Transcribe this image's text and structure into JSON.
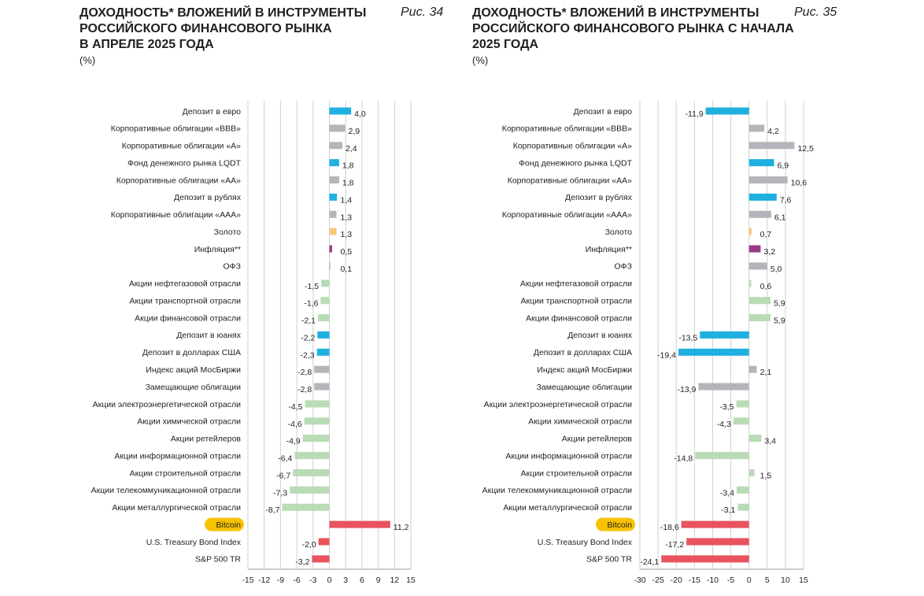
{
  "colors": {
    "blue": "#1fb0e0",
    "gray": "#b4b4bb",
    "lightgreen": "#b9dbb5",
    "red": "#e8535d",
    "gold": "#f6c977",
    "purple": "#9b3a86",
    "highlight": "#f7c300",
    "grid": "#cfcfcf"
  },
  "chart_data": [
    {
      "type": "bar",
      "orientation": "horizontal",
      "title_lines": [
        "ДОХОДНОСТЬ* ВЛОЖЕНИЙ В ИНСТРУМЕНТЫ",
        "РОССИЙСКОГО ФИНАНСОВОГО РЫНКА",
        "В АПРЕЛЕ 2025 ГОДА"
      ],
      "figure_label": "Рис. 34",
      "unit": "(%)",
      "xlim": [
        -15,
        15
      ],
      "xticks": [
        -15,
        -12,
        -9,
        -6,
        -3,
        0,
        3,
        6,
        9,
        12,
        15
      ],
      "grid": true,
      "categories": [
        "Депозит в евро",
        "Корпоративные облигации «ВВВ»",
        "Корпоративные облигации «А»",
        "Фонд денежного рынка LQDT",
        "Корпоративные облигации «АА»",
        "Депозит в рублях",
        "Корпоративные облигации «ААА»",
        "Золото",
        "Инфляция**",
        "ОФЗ",
        "Акции нефтегазовой отрасли",
        "Акции транспортной отрасли",
        "Акции финансовой отрасли",
        "Депозит в юанях",
        "Депозит в долларах США",
        "Индекс акций МосБиржи",
        "Замещающие облигации",
        "Акции электроэнергетической отрасли",
        "Акции химической отрасли",
        "Акции ретейлеров",
        "Акции информационной отрасли",
        "Акции строительной отрасли",
        "Акции телекоммуникационной отрасли",
        "Акции металлургической отрасли",
        "Bitcoin",
        "U.S. Treasury Bond Index",
        "S&P 500 TR"
      ],
      "values": [
        4.0,
        2.9,
        2.4,
        1.8,
        1.8,
        1.4,
        1.3,
        1.3,
        0.5,
        0.1,
        -1.5,
        -1.6,
        -2.1,
        -2.2,
        -2.3,
        -2.8,
        -2.8,
        -4.5,
        -4.6,
        -4.9,
        -6.4,
        -6.7,
        -7.3,
        -8.7,
        11.2,
        -2.0,
        -3.2
      ],
      "labels": [
        "4,0",
        "2,9",
        "2,4",
        "1,8",
        "1,8",
        "1,4",
        "1,3",
        "1,3",
        "0,5",
        "0,1",
        "-1,5",
        "-1,6",
        "-2,1",
        "-2,2",
        "-2,3",
        "-2,8",
        "-2,8",
        "-4,5",
        "-4,6",
        "-4,9",
        "-6,4",
        "-6,7",
        "-7,3",
        "-8,7",
        "11,2",
        "-2,0",
        "-3,2"
      ],
      "colors": [
        "blue",
        "gray",
        "gray",
        "blue",
        "gray",
        "blue",
        "gray",
        "gold",
        "purple",
        "gray",
        "lightgreen",
        "lightgreen",
        "lightgreen",
        "blue",
        "blue",
        "gray",
        "gray",
        "lightgreen",
        "lightgreen",
        "lightgreen",
        "lightgreen",
        "lightgreen",
        "lightgreen",
        "lightgreen",
        "red",
        "red",
        "red"
      ]
    },
    {
      "type": "bar",
      "orientation": "horizontal",
      "title_lines": [
        "ДОХОДНОСТЬ* ВЛОЖЕНИЙ В ИНСТРУМЕНТЫ",
        "РОССИЙСКОГО ФИНАНСОВОГО РЫНКА С НАЧАЛА",
        "2025 ГОДА"
      ],
      "figure_label": "Рис. 35",
      "unit": "(%)",
      "xlim": [
        -30,
        15
      ],
      "xticks": [
        -30,
        -25,
        -20,
        -15,
        -10,
        -5,
        0,
        5,
        10,
        15
      ],
      "grid": true,
      "categories": [
        "Депозит в евро",
        "Корпоративные облигации «ВВВ»",
        "Корпоративные облигации «А»",
        "Фонд денежного рынка LQDT",
        "Корпоративные облигации «АА»",
        "Депозит в рублях",
        "Корпоративные облигации «ААА»",
        "Золото",
        "Инфляция**",
        "ОФЗ",
        "Акции нефтегазовой отрасли",
        "Акции транспортной отрасли",
        "Акции финансовой отрасли",
        "Депозит в юанях",
        "Депозит в долларах США",
        "Индекс акций МосБиржи",
        "Замещающие облигации",
        "Акции электроэнергетической отрасли",
        "Акции химической отрасли",
        "Акции ретейлеров",
        "Акции информационной отрасли",
        "Акции строительной отрасли",
        "Акции телекоммуникационной отрасли",
        "Акции металлургической отрасли",
        "Bitcoin",
        "U.S. Treasury Bond Index",
        "S&P 500 TR"
      ],
      "values": [
        -11.9,
        4.2,
        12.5,
        6.9,
        10.6,
        7.6,
        6.1,
        0.7,
        3.2,
        5.0,
        0.6,
        5.9,
        5.9,
        -13.5,
        -19.4,
        2.1,
        -13.9,
        -3.5,
        -4.3,
        3.4,
        -14.8,
        1.5,
        -3.4,
        -3.1,
        -18.6,
        -17.2,
        -24.1
      ],
      "labels": [
        "-11,9",
        "4,2",
        "12,5",
        "6,9",
        "10,6",
        "7,6",
        "6,1",
        "0,7",
        "3,2",
        "5,0",
        "0,6",
        "5,9",
        "5,9",
        "-13,5",
        "-19,4",
        "2,1",
        "-13,9",
        "-3,5",
        "-4,3",
        "3,4",
        "-14,8",
        "1,5",
        "-3,4",
        "-3,1",
        "-18,6",
        "-17,2",
        "-24,1"
      ],
      "colors": [
        "blue",
        "gray",
        "gray",
        "blue",
        "gray",
        "blue",
        "gray",
        "gold",
        "purple",
        "gray",
        "lightgreen",
        "lightgreen",
        "lightgreen",
        "blue",
        "blue",
        "gray",
        "gray",
        "lightgreen",
        "lightgreen",
        "lightgreen",
        "lightgreen",
        "lightgreen",
        "lightgreen",
        "lightgreen",
        "red",
        "red",
        "red"
      ]
    }
  ],
  "highlight_category": "Bitcoin"
}
